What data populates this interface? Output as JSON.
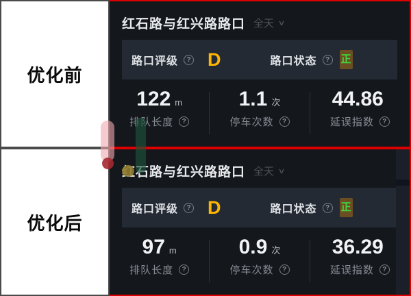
{
  "icons": {
    "help_glyph": "?",
    "chevron_glyph": "∨"
  },
  "colors": {
    "accent_red_border": "#dc0000",
    "panel_bg": "#14171c",
    "highlight_row_bg": "#232a33",
    "rating_color": "#ffb400",
    "status_text_green": "#3ddc3d",
    "status_badge_bg": "#6b4f23",
    "stat_value_color": "#f2f3f5",
    "stat_label_color": "#878c94"
  },
  "panels": [
    {
      "side_label": "优化前",
      "title": "红石路与红兴路路口",
      "time_filter": "全天",
      "rating": {
        "label": "路口评级",
        "value": "D"
      },
      "status": {
        "label": "路口状态",
        "value": "正"
      },
      "stats": [
        {
          "value": "122",
          "unit": "m",
          "label": "排队长度"
        },
        {
          "value": "1.1",
          "unit": "次",
          "label": "停车次数"
        },
        {
          "value": "44.86",
          "unit": "",
          "label": "延误指数"
        }
      ]
    },
    {
      "side_label": "优化后",
      "title": "红石路与红兴路路口",
      "time_filter": "全天",
      "rating": {
        "label": "路口评级",
        "value": "D"
      },
      "status": {
        "label": "路口状态",
        "value": "正"
      },
      "stats": [
        {
          "value": "97",
          "unit": "m",
          "label": "排队长度"
        },
        {
          "value": "0.9",
          "unit": "次",
          "label": "停车次数"
        },
        {
          "value": "36.29",
          "unit": "",
          "label": "延误指数"
        }
      ]
    }
  ]
}
